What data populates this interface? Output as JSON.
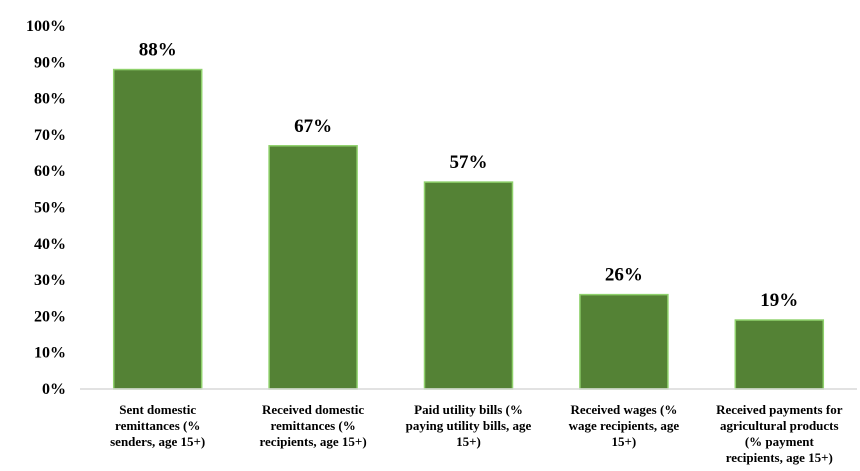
{
  "chart_data": {
    "type": "bar",
    "categories": [
      [
        "Sent domestic",
        "remittances (%",
        "senders, age 15+)"
      ],
      [
        "Received domestic",
        "remittances (%",
        "recipients, age 15+)"
      ],
      [
        "Paid utility bills (%",
        "paying utility bills, age",
        "15+)"
      ],
      [
        "Received wages (%",
        "wage recipients, age",
        "15+)"
      ],
      [
        "Received payments for",
        "agricultural products",
        "(% payment",
        "recipients, age 15+)"
      ]
    ],
    "values": [
      88,
      67,
      57,
      26,
      19
    ],
    "data_labels": [
      "88%",
      "67%",
      "57%",
      "26%",
      "19%"
    ],
    "y_ticks": [
      "0%",
      "10%",
      "20%",
      "30%",
      "40%",
      "50%",
      "60%",
      "70%",
      "80%",
      "90%",
      "100%"
    ],
    "ylim": [
      0,
      100
    ],
    "grid": false,
    "legend": "none",
    "colors": {
      "bar_fill": "#548235",
      "bar_border": "#8fd16c",
      "axis": "#d9d9d9"
    }
  }
}
